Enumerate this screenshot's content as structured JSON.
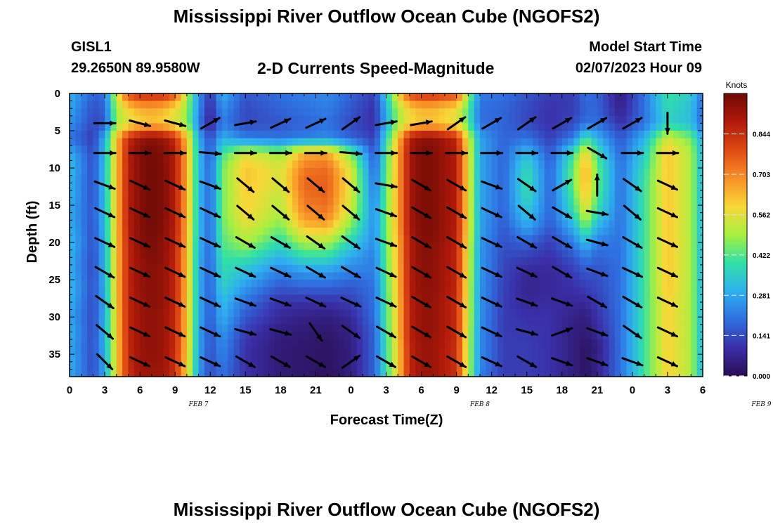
{
  "header": {
    "title": "Mississippi River Outflow Ocean Cube (NGOFS2)",
    "station_id": "GISL1",
    "station_coords": "29.2650N  89.9580W",
    "plot_subtitle": "2-D Currents Speed-Magnitude",
    "model_start_label": "Model Start Time",
    "model_start_value": "02/07/2023 Hour 09"
  },
  "footer": {
    "title": "Mississippi River Outflow Ocean Cube (NGOFS2)"
  },
  "chart_data": {
    "type": "heatmap",
    "title": "2-D Currents Speed-Magnitude",
    "xlabel": "Forecast Time(Z)",
    "ylabel": "Depth (ft)",
    "x_ticks": [
      "0",
      "3",
      "6",
      "9",
      "12",
      "15",
      "18",
      "21",
      "0",
      "3",
      "6",
      "9",
      "12",
      "15",
      "18",
      "21",
      "0",
      "3",
      "6"
    ],
    "date_labels": [
      {
        "label": "FEB 7",
        "hour": 11
      },
      {
        "label": "FEB 8",
        "hour": 35
      },
      {
        "label": "FEB 9",
        "hour": 59
      }
    ],
    "x_range_hours": [
      0,
      54
    ],
    "y_ticks": [
      0,
      5,
      10,
      15,
      20,
      25,
      30,
      35
    ],
    "y_range_ft": [
      0,
      38
    ],
    "y_inverted": true,
    "colorbar": {
      "label": "Knots",
      "ticks": [
        "0.844",
        "0.703",
        "0.562",
        "0.422",
        "0.281",
        "0.141",
        "0.000"
      ],
      "range": [
        0,
        0.985
      ]
    },
    "colorscale": [
      "#2a0d52",
      "#3a2fa8",
      "#2f6fe0",
      "#2fb0f0",
      "#30e0a8",
      "#a8f040",
      "#f8d838",
      "#f89028",
      "#e04a14",
      "#b01a0a",
      "#6e0a06"
    ],
    "columns": [
      {
        "hour": 0,
        "values": [
          0.3,
          0.28,
          0.25,
          0.2,
          0.3,
          0.32,
          0.3,
          0.3,
          0.28,
          0.3,
          0.32,
          0.3,
          0.3,
          0.32,
          0.3,
          0.28,
          0.3,
          0.28,
          0.3,
          0.28
        ]
      },
      {
        "hour": 2,
        "values": [
          0.18,
          0.15,
          0.14,
          0.12,
          0.14,
          0.15,
          0.15,
          0.15,
          0.16,
          0.15,
          0.15,
          0.14,
          0.14,
          0.15,
          0.14,
          0.14,
          0.14,
          0.15,
          0.14,
          0.15
        ]
      },
      {
        "hour": 3,
        "values": [
          0.2,
          0.18,
          0.16,
          0.3,
          0.32,
          0.33,
          0.33,
          0.32,
          0.32,
          0.32,
          0.3,
          0.3,
          0.3,
          0.3,
          0.28,
          0.3,
          0.3,
          0.3,
          0.28,
          0.28
        ]
      },
      {
        "hour": 4,
        "values": [
          0.55,
          0.5,
          0.48,
          0.62,
          0.62,
          0.62,
          0.62,
          0.62,
          0.62,
          0.62,
          0.62,
          0.62,
          0.62,
          0.62,
          0.62,
          0.6,
          0.6,
          0.6,
          0.6,
          0.6
        ]
      },
      {
        "hour": 5,
        "values": [
          0.8,
          0.6,
          0.55,
          0.85,
          0.88,
          0.88,
          0.88,
          0.88,
          0.88,
          0.88,
          0.86,
          0.86,
          0.86,
          0.86,
          0.86,
          0.86,
          0.86,
          0.85,
          0.85,
          0.84
        ]
      },
      {
        "hour": 6,
        "values": [
          0.85,
          0.65,
          0.6,
          0.92,
          0.95,
          0.95,
          0.95,
          0.95,
          0.95,
          0.95,
          0.95,
          0.93,
          0.93,
          0.93,
          0.92,
          0.92,
          0.92,
          0.92,
          0.92,
          0.9
        ]
      },
      {
        "hour": 7,
        "values": [
          0.85,
          0.66,
          0.62,
          0.95,
          0.98,
          0.98,
          0.98,
          0.98,
          0.98,
          0.98,
          0.97,
          0.96,
          0.95,
          0.95,
          0.95,
          0.94,
          0.94,
          0.94,
          0.93,
          0.92
        ]
      },
      {
        "hour": 8,
        "values": [
          0.85,
          0.64,
          0.6,
          0.92,
          0.95,
          0.96,
          0.96,
          0.96,
          0.96,
          0.95,
          0.94,
          0.94,
          0.93,
          0.93,
          0.93,
          0.92,
          0.92,
          0.92,
          0.92,
          0.9
        ]
      },
      {
        "hour": 9,
        "values": [
          0.78,
          0.58,
          0.55,
          0.85,
          0.88,
          0.88,
          0.88,
          0.88,
          0.88,
          0.88,
          0.87,
          0.86,
          0.86,
          0.86,
          0.86,
          0.85,
          0.85,
          0.85,
          0.84,
          0.84
        ]
      },
      {
        "hour": 10,
        "values": [
          0.52,
          0.48,
          0.48,
          0.62,
          0.65,
          0.65,
          0.65,
          0.65,
          0.65,
          0.65,
          0.64,
          0.63,
          0.63,
          0.63,
          0.62,
          0.62,
          0.62,
          0.62,
          0.6,
          0.6
        ]
      },
      {
        "hour": 11,
        "values": [
          0.25,
          0.25,
          0.22,
          0.3,
          0.32,
          0.32,
          0.32,
          0.32,
          0.32,
          0.32,
          0.31,
          0.3,
          0.3,
          0.3,
          0.3,
          0.3,
          0.28,
          0.28,
          0.28,
          0.26
        ]
      },
      {
        "hour": 12,
        "values": [
          0.1,
          0.08,
          0.06,
          0.14,
          0.16,
          0.18,
          0.18,
          0.18,
          0.18,
          0.18,
          0.18,
          0.18,
          0.17,
          0.17,
          0.16,
          0.16,
          0.15,
          0.15,
          0.14,
          0.14
        ]
      },
      {
        "hour": 13,
        "values": [
          0.3,
          0.25,
          0.22,
          0.3,
          0.4,
          0.45,
          0.45,
          0.45,
          0.45,
          0.44,
          0.42,
          0.4,
          0.38,
          0.36,
          0.32,
          0.3,
          0.26,
          0.24,
          0.22,
          0.2
        ]
      },
      {
        "hour": 15,
        "values": [
          0.16,
          0.14,
          0.14,
          0.22,
          0.55,
          0.62,
          0.62,
          0.6,
          0.6,
          0.55,
          0.5,
          0.4,
          0.32,
          0.26,
          0.2,
          0.16,
          0.12,
          0.1,
          0.1,
          0.1
        ]
      },
      {
        "hour": 18,
        "values": [
          0.2,
          0.18,
          0.16,
          0.2,
          0.48,
          0.55,
          0.55,
          0.52,
          0.5,
          0.45,
          0.38,
          0.3,
          0.22,
          0.16,
          0.1,
          0.08,
          0.05,
          0.04,
          0.04,
          0.04
        ]
      },
      {
        "hour": 20,
        "values": [
          0.22,
          0.2,
          0.18,
          0.22,
          0.65,
          0.72,
          0.75,
          0.73,
          0.7,
          0.62,
          0.5,
          0.38,
          0.26,
          0.18,
          0.1,
          0.06,
          0.04,
          0.03,
          0.03,
          0.03
        ]
      },
      {
        "hour": 22,
        "values": [
          0.24,
          0.22,
          0.2,
          0.24,
          0.66,
          0.74,
          0.76,
          0.75,
          0.72,
          0.64,
          0.5,
          0.38,
          0.26,
          0.18,
          0.1,
          0.05,
          0.03,
          0.02,
          0.02,
          0.01
        ]
      },
      {
        "hour": 24,
        "values": [
          0.18,
          0.16,
          0.14,
          0.18,
          0.45,
          0.55,
          0.56,
          0.55,
          0.52,
          0.45,
          0.36,
          0.28,
          0.22,
          0.16,
          0.12,
          0.08,
          0.06,
          0.05,
          0.05,
          0.05
        ]
      },
      {
        "hour": 26,
        "values": [
          0.12,
          0.1,
          0.1,
          0.12,
          0.16,
          0.18,
          0.2,
          0.22,
          0.24,
          0.24,
          0.24,
          0.22,
          0.22,
          0.2,
          0.2,
          0.2,
          0.18,
          0.18,
          0.18,
          0.18
        ]
      },
      {
        "hour": 28,
        "values": [
          0.6,
          0.5,
          0.48,
          0.62,
          0.66,
          0.66,
          0.66,
          0.66,
          0.66,
          0.66,
          0.64,
          0.64,
          0.63,
          0.63,
          0.62,
          0.62,
          0.62,
          0.6,
          0.6,
          0.6
        ]
      },
      {
        "hour": 29,
        "values": [
          0.8,
          0.6,
          0.58,
          0.88,
          0.9,
          0.9,
          0.9,
          0.9,
          0.9,
          0.9,
          0.88,
          0.88,
          0.88,
          0.88,
          0.87,
          0.87,
          0.87,
          0.86,
          0.86,
          0.86
        ]
      },
      {
        "hour": 30,
        "values": [
          0.84,
          0.64,
          0.62,
          0.94,
          0.96,
          0.96,
          0.96,
          0.96,
          0.96,
          0.96,
          0.95,
          0.95,
          0.94,
          0.94,
          0.93,
          0.93,
          0.93,
          0.92,
          0.92,
          0.92
        ]
      },
      {
        "hour": 31,
        "values": [
          0.84,
          0.64,
          0.62,
          0.94,
          0.96,
          0.96,
          0.96,
          0.96,
          0.96,
          0.96,
          0.95,
          0.94,
          0.94,
          0.94,
          0.93,
          0.93,
          0.93,
          0.92,
          0.92,
          0.92
        ]
      },
      {
        "hour": 33,
        "values": [
          0.8,
          0.58,
          0.56,
          0.86,
          0.88,
          0.88,
          0.88,
          0.88,
          0.88,
          0.88,
          0.87,
          0.86,
          0.86,
          0.86,
          0.85,
          0.85,
          0.85,
          0.84,
          0.84,
          0.84
        ]
      },
      {
        "hour": 34,
        "values": [
          0.5,
          0.42,
          0.42,
          0.55,
          0.58,
          0.58,
          0.58,
          0.58,
          0.58,
          0.58,
          0.56,
          0.55,
          0.55,
          0.54,
          0.54,
          0.54,
          0.53,
          0.52,
          0.52,
          0.52
        ]
      },
      {
        "hour": 35,
        "values": [
          0.22,
          0.2,
          0.2,
          0.28,
          0.28,
          0.28,
          0.28,
          0.28,
          0.28,
          0.28,
          0.26,
          0.26,
          0.26,
          0.25,
          0.25,
          0.25,
          0.24,
          0.24,
          0.24,
          0.22
        ]
      },
      {
        "hour": 37,
        "values": [
          0.2,
          0.18,
          0.18,
          0.18,
          0.18,
          0.18,
          0.18,
          0.18,
          0.18,
          0.16,
          0.15,
          0.14,
          0.13,
          0.13,
          0.12,
          0.12,
          0.12,
          0.12,
          0.12,
          0.12
        ]
      },
      {
        "hour": 39,
        "values": [
          0.16,
          0.14,
          0.14,
          0.2,
          0.32,
          0.38,
          0.4,
          0.38,
          0.34,
          0.28,
          0.18,
          0.12,
          0.08,
          0.07,
          0.08,
          0.1,
          0.11,
          0.12,
          0.12,
          0.12
        ]
      },
      {
        "hour": 41,
        "values": [
          0.12,
          0.1,
          0.1,
          0.12,
          0.16,
          0.18,
          0.18,
          0.18,
          0.18,
          0.16,
          0.12,
          0.1,
          0.08,
          0.08,
          0.09,
          0.1,
          0.1,
          0.1,
          0.1,
          0.1
        ]
      },
      {
        "hour": 43,
        "values": [
          0.12,
          0.12,
          0.14,
          0.22,
          0.4,
          0.45,
          0.45,
          0.42,
          0.38,
          0.3,
          0.22,
          0.16,
          0.12,
          0.1,
          0.08,
          0.06,
          0.05,
          0.05,
          0.05,
          0.05
        ]
      },
      {
        "hour": 44,
        "values": [
          0.2,
          0.18,
          0.2,
          0.4,
          0.6,
          0.66,
          0.66,
          0.62,
          0.55,
          0.45,
          0.32,
          0.22,
          0.16,
          0.12,
          0.08,
          0.05,
          0.04,
          0.02,
          0.02,
          0.02
        ]
      },
      {
        "hour": 45,
        "values": [
          0.18,
          0.18,
          0.2,
          0.3,
          0.4,
          0.44,
          0.44,
          0.42,
          0.38,
          0.3,
          0.22,
          0.18,
          0.15,
          0.14,
          0.12,
          0.1,
          0.08,
          0.05,
          0.06,
          0.06
        ]
      },
      {
        "hour": 47,
        "values": [
          0.05,
          0.06,
          0.1,
          0.16,
          0.18,
          0.2,
          0.2,
          0.2,
          0.2,
          0.2,
          0.2,
          0.2,
          0.2,
          0.2,
          0.2,
          0.2,
          0.2,
          0.2,
          0.2,
          0.2
        ]
      },
      {
        "hour": 49,
        "values": [
          0.2,
          0.2,
          0.2,
          0.3,
          0.35,
          0.38,
          0.4,
          0.4,
          0.4,
          0.4,
          0.4,
          0.4,
          0.4,
          0.4,
          0.4,
          0.4,
          0.4,
          0.4,
          0.4,
          0.4
        ]
      },
      {
        "hour": 51,
        "values": [
          0.4,
          0.38,
          0.36,
          0.55,
          0.62,
          0.62,
          0.62,
          0.62,
          0.62,
          0.62,
          0.62,
          0.62,
          0.62,
          0.62,
          0.6,
          0.6,
          0.6,
          0.6,
          0.6,
          0.6
        ]
      },
      {
        "hour": 53,
        "values": [
          0.35,
          0.32,
          0.32,
          0.45,
          0.5,
          0.5,
          0.5,
          0.5,
          0.5,
          0.5,
          0.5,
          0.5,
          0.5,
          0.5,
          0.5,
          0.5,
          0.5,
          0.5,
          0.5,
          0.5
        ]
      },
      {
        "hour": 54,
        "values": [
          0.2,
          0.18,
          0.18,
          0.28,
          0.3,
          0.3,
          0.3,
          0.3,
          0.3,
          0.3,
          0.3,
          0.3,
          0.3,
          0.3,
          0.3,
          0.3,
          0.3,
          0.3,
          0.3,
          0.3
        ]
      }
    ],
    "column_depths_ft": [
      0,
      2,
      4,
      6,
      8,
      10,
      12,
      14,
      16,
      18,
      20,
      22,
      24,
      26,
      28,
      30,
      32,
      34,
      36,
      38
    ],
    "arrow_depths_ft": [
      4,
      8,
      12.3,
      16,
      20,
      24,
      28,
      32,
      36
    ],
    "arrows": [
      {
        "hour": 3,
        "dirs": [
          0,
          0,
          20,
          25,
          25,
          30,
          35,
          40,
          45
        ]
      },
      {
        "hour": 6,
        "dirs": [
          15,
          0,
          25,
          25,
          25,
          25,
          25,
          25,
          25
        ]
      },
      {
        "hour": 9,
        "dirs": [
          15,
          0,
          25,
          25,
          25,
          25,
          25,
          25,
          25
        ]
      },
      {
        "hour": 12,
        "dirs": [
          -30,
          5,
          20,
          25,
          25,
          25,
          25,
          25,
          25
        ]
      },
      {
        "hour": 15,
        "dirs": [
          -10,
          0,
          40,
          40,
          30,
          25,
          20,
          15,
          30
        ]
      },
      {
        "hour": 18,
        "dirs": [
          -25,
          0,
          40,
          40,
          30,
          25,
          20,
          15,
          30
        ]
      },
      {
        "hour": 21,
        "dirs": [
          -25,
          0,
          40,
          40,
          35,
          30,
          25,
          55,
          30
        ]
      },
      {
        "hour": 24,
        "dirs": [
          -35,
          5,
          40,
          40,
          35,
          30,
          25,
          35,
          -35
        ]
      },
      {
        "hour": 27,
        "dirs": [
          -10,
          0,
          10,
          20,
          20,
          25,
          25,
          30,
          30
        ]
      },
      {
        "hour": 30,
        "dirs": [
          -10,
          0,
          30,
          30,
          30,
          30,
          30,
          30,
          30
        ]
      },
      {
        "hour": 33,
        "dirs": [
          -35,
          0,
          30,
          30,
          30,
          30,
          30,
          30,
          30
        ]
      },
      {
        "hour": 36,
        "dirs": [
          -30,
          0,
          20,
          25,
          25,
          25,
          25,
          25,
          25
        ]
      },
      {
        "hour": 39,
        "dirs": [
          -35,
          0,
          35,
          40,
          30,
          25,
          20,
          15,
          30
        ]
      },
      {
        "hour": 42,
        "dirs": [
          -30,
          0,
          -30,
          30,
          30,
          30,
          20,
          -20,
          20
        ]
      },
      {
        "hour": 45,
        "dirs": [
          -30,
          30,
          -90,
          10,
          15,
          20,
          30,
          20,
          20
        ]
      },
      {
        "hour": 48,
        "dirs": [
          -30,
          0,
          35,
          40,
          30,
          25,
          30,
          35,
          20
        ]
      },
      {
        "hour": 51,
        "dirs": [
          90,
          0,
          25,
          25,
          25,
          25,
          25,
          25,
          25
        ]
      }
    ]
  }
}
